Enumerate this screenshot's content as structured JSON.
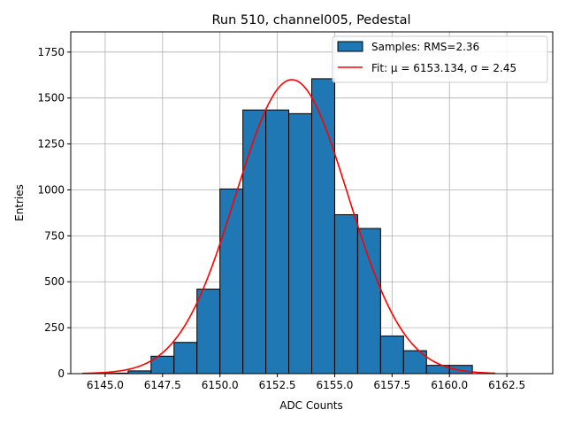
{
  "chart_data": {
    "type": "histogram",
    "title": "Run 510, channel005, Pedestal",
    "xlabel": "ADC Counts",
    "ylabel": "Entries",
    "xlim": [
      6143.5,
      6164.5
    ],
    "ylim": [
      0,
      1860
    ],
    "xticks": [
      6145.0,
      6147.5,
      6150.0,
      6152.5,
      6155.0,
      6157.5,
      6160.0,
      6162.5
    ],
    "xtick_labels": [
      "6145.0",
      "6147.5",
      "6150.0",
      "6152.5",
      "6155.0",
      "6157.5",
      "6160.0",
      "6162.5"
    ],
    "yticks": [
      0,
      250,
      500,
      750,
      1000,
      1250,
      1500,
      1750
    ],
    "ytick_labels": [
      "0",
      "250",
      "500",
      "750",
      "1000",
      "1250",
      "1500",
      "1750"
    ],
    "grid": true,
    "legend_position": "top-right",
    "bins": [
      {
        "x0": 6145.0,
        "x1": 6146.0,
        "count": 3
      },
      {
        "x0": 6146.0,
        "x1": 6147.0,
        "count": 15
      },
      {
        "x0": 6147.0,
        "x1": 6148.0,
        "count": 95
      },
      {
        "x0": 6148.0,
        "x1": 6149.0,
        "count": 170
      },
      {
        "x0": 6149.0,
        "x1": 6150.0,
        "count": 460
      },
      {
        "x0": 6150.0,
        "x1": 6151.0,
        "count": 1005
      },
      {
        "x0": 6151.0,
        "x1": 6152.0,
        "count": 1435
      },
      {
        "x0": 6152.0,
        "x1": 6153.0,
        "count": 1435
      },
      {
        "x0": 6153.0,
        "x1": 6154.0,
        "count": 1415
      },
      {
        "x0": 6154.0,
        "x1": 6155.0,
        "count": 1605
      },
      {
        "x0": 6155.0,
        "x1": 6156.0,
        "count": 865
      },
      {
        "x0": 6156.0,
        "x1": 6157.0,
        "count": 790
      },
      {
        "x0": 6157.0,
        "x1": 6158.0,
        "count": 205
      },
      {
        "x0": 6158.0,
        "x1": 6159.0,
        "count": 125
      },
      {
        "x0": 6159.0,
        "x1": 6160.0,
        "count": 45
      },
      {
        "x0": 6160.0,
        "x1": 6161.0,
        "count": 45
      }
    ],
    "fit": {
      "mu": 6153.134,
      "sigma": 2.45,
      "amplitude": 1600,
      "x_range": [
        6144.0,
        6162.0
      ]
    },
    "series": [
      {
        "name": "Samples: RMS=2.36",
        "kind": "histogram",
        "color": "#1f77b4"
      },
      {
        "name": "Fit: μ = 6153.134, σ = 2.45",
        "kind": "line",
        "color": "#ff0000"
      }
    ]
  }
}
